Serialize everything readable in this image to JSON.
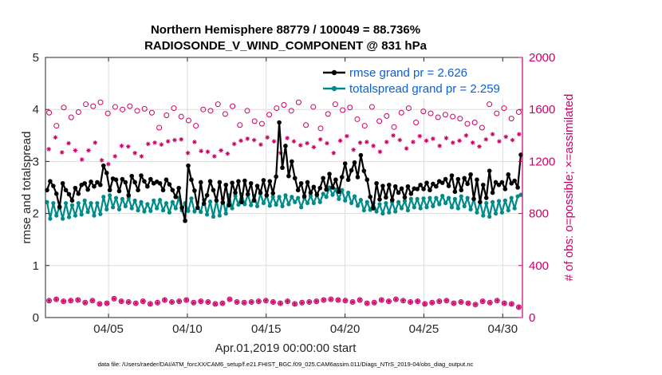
{
  "chart_data": {
    "type": "line",
    "title": "Northern Hemisphere 88779 / 100049 = 88.736%",
    "subtitle": "RADIOSONDE_V_WIND_COMPONENT @ 831 hPa",
    "xlabel": "Apr.01,2019 00:00:00 start",
    "ylabel_left": "rmse and totalspread",
    "ylabel_right": "# of obs: o=possible; ×=assimilated",
    "footnote": "data file: /Users/raeder/DAI/ATM_forcXX/CAM6_setup/f.e21.FHIST_BGC.f09_025.CAM6assim.011/Diags_NTrS_2019-04/obs_diag_output.nc",
    "x_range_days": [
      1.0,
      31.25
    ],
    "ylim_left": [
      0,
      5
    ],
    "ylim_right": [
      0,
      2000
    ],
    "yticks_left": [
      "0",
      "1",
      "2",
      "3",
      "4",
      "5"
    ],
    "yticks_right": [
      "0",
      "400",
      "800",
      "1200",
      "1600",
      "2000"
    ],
    "xticks": [
      {
        "day": 5,
        "label": "04/05"
      },
      {
        "day": 10,
        "label": "04/10"
      },
      {
        "day": 15,
        "label": "04/15"
      },
      {
        "day": 20,
        "label": "04/20"
      },
      {
        "day": 25,
        "label": "04/25"
      },
      {
        "day": 30,
        "label": "04/30"
      }
    ],
    "grid": true,
    "legend_position": "top-right",
    "colors": {
      "rmse": "#000000",
      "spread": "#008b8b",
      "obs": "#cc0066"
    },
    "series": [
      {
        "name": "rmse grand pr = 2.626",
        "axis": "left",
        "values": [
          2.45,
          2.62,
          2.53,
          2.38,
          2.12,
          2.58,
          2.45,
          2.37,
          2.25,
          2.49,
          2.38,
          2.55,
          2.58,
          2.46,
          2.61,
          2.52,
          2.6,
          2.55,
          2.92,
          2.78,
          2.45,
          2.67,
          2.65,
          2.43,
          2.66,
          2.6,
          2.35,
          2.72,
          2.6,
          2.45,
          2.73,
          2.62,
          2.52,
          2.66,
          2.58,
          2.61,
          2.58,
          2.45,
          2.65,
          2.56,
          2.45,
          2.32,
          2.49,
          2.11,
          1.86,
          2.92,
          2.65,
          2.44,
          2.11,
          2.6,
          2.19,
          2.35,
          2.62,
          2.45,
          2.25,
          2.6,
          2.21,
          2.55,
          2.16,
          2.59,
          2.4,
          2.62,
          2.22,
          2.63,
          2.37,
          2.58,
          2.25,
          2.53,
          2.4,
          2.64,
          2.35,
          2.62,
          2.39,
          2.71,
          3.75,
          2.88,
          3.3,
          2.72,
          3.0,
          2.68,
          2.45,
          2.58,
          2.33,
          2.6,
          2.4,
          2.51,
          2.36,
          2.49,
          2.68,
          2.46,
          2.76,
          2.5,
          2.65,
          2.42,
          2.7,
          2.96,
          2.65,
          2.83,
          2.98,
          2.7,
          3.12,
          2.82,
          2.65,
          2.32,
          2.1,
          2.58,
          2.27,
          2.53,
          2.31,
          2.55,
          2.26,
          2.52,
          2.4,
          2.48,
          2.31,
          2.52,
          2.38,
          2.48,
          2.47,
          2.55,
          2.47,
          2.59,
          2.45,
          2.57,
          2.52,
          2.62,
          2.59,
          2.66,
          2.53,
          2.73,
          2.42,
          2.66,
          2.45,
          2.68,
          2.57,
          2.75,
          2.28,
          2.65,
          2.22,
          2.55,
          2.3,
          2.82,
          2.4,
          2.6,
          2.55,
          2.6,
          2.47,
          2.75,
          2.58,
          2.63,
          2.5,
          3.13
        ]
      },
      {
        "name": "totalspread grand pr = 2.259",
        "axis": "left",
        "values": [
          2.22,
          1.9,
          2.2,
          1.96,
          2.14,
          1.9,
          2.2,
          1.93,
          2.16,
          1.96,
          2.2,
          1.98,
          2.25,
          2.03,
          2.2,
          1.96,
          2.2,
          1.99,
          2.32,
          2.08,
          2.35,
          2.12,
          2.3,
          2.08,
          2.28,
          2.14,
          2.3,
          2.1,
          2.25,
          2.06,
          2.22,
          2.04,
          2.18,
          2.05,
          2.25,
          2.1,
          2.26,
          2.06,
          2.2,
          2.02,
          2.22,
          2.1,
          2.3,
          2.06,
          2.2,
          2.05,
          2.29,
          2.04,
          2.12,
          2.03,
          2.26,
          1.98,
          2.23,
          1.94,
          2.25,
          1.96,
          2.28,
          2.0,
          2.35,
          2.1,
          2.34,
          2.17,
          2.37,
          2.18,
          2.36,
          2.16,
          2.34,
          2.14,
          2.38,
          2.2,
          2.35,
          2.15,
          2.32,
          2.17,
          2.32,
          2.14,
          2.35,
          2.18,
          2.32,
          2.22,
          2.3,
          2.12,
          2.3,
          2.2,
          2.34,
          2.2,
          2.36,
          2.22,
          2.38,
          2.32,
          2.5,
          2.36,
          2.46,
          2.28,
          2.45,
          2.25,
          2.4,
          2.2,
          2.33,
          2.15,
          2.26,
          2.06,
          2.22,
          2.07,
          2.2,
          2.04,
          2.18,
          2.0,
          2.2,
          2.02,
          2.22,
          2.04,
          2.22,
          2.1,
          2.24,
          2.06,
          2.28,
          2.12,
          2.28,
          2.1,
          2.29,
          2.12,
          2.3,
          2.14,
          2.3,
          2.18,
          2.34,
          2.2,
          2.3,
          2.12,
          2.28,
          2.1,
          2.33,
          2.14,
          2.3,
          2.08,
          2.28,
          2.02,
          2.22,
          1.96,
          2.2,
          1.94,
          2.22,
          2.0,
          2.24,
          2.02,
          2.25,
          2.06,
          2.3,
          2.1,
          2.33,
          2.36
        ]
      },
      {
        "name": "possible obs (upper)",
        "axis": "right",
        "values": [
          1575,
          1475,
          1615,
          1540,
          1580,
          1640,
          1625,
          1655,
          1570,
          1620,
          1600,
          1625,
          1590,
          1605,
          1575,
          1460,
          1555,
          1610,
          1545,
          1515,
          1475,
          1600,
          1590,
          1640,
          1565,
          1625,
          1480,
          1590,
          1510,
          1490,
          1560,
          1610,
          1635,
          1590,
          1655,
          1480,
          1620,
          1455,
          1565,
          1640,
          1595,
          1615,
          1525,
          1475,
          1620,
          1510,
          1550,
          1465,
          1575,
          1610,
          1500,
          1585,
          1570,
          1540,
          1560,
          1545,
          1530,
          1490,
          1500,
          1460,
          1640,
          1570,
          1610,
          1530,
          1580
        ]
      },
      {
        "name": "assimilated obs (upper)",
        "axis": "right",
        "values": [
          1295,
          1385,
          1270,
          1340,
          1285,
          1215,
          1285,
          1345,
          1210,
          1180,
          1240,
          1320,
          1315,
          1265,
          1240,
          1335,
          1345,
          1330,
          1355,
          1365,
          1370,
          1265,
          1350,
          1280,
          1275,
          1240,
          1285,
          1260,
          1335,
          1360,
          1375,
          1365,
          1330,
          1385,
          1355,
          1265,
          1380,
          1355,
          1325,
          1340,
          1310,
          1370,
          1340,
          1265,
          1360,
          1395,
          1290,
          1345,
          1350,
          1320,
          1275,
          1350,
          1400,
          1365,
          1300,
          1350,
          1395,
          1360,
          1375,
          1320,
          1380,
          1345,
          1360,
          1400,
          1345,
          1315,
          1370,
          1410,
          1355,
          1390,
          1365,
          1410
        ]
      },
      {
        "name": "possible obs (lower)",
        "axis": "right",
        "values": [
          130,
          140,
          125,
          130,
          135,
          115,
          130,
          105,
          110,
          145,
          125,
          120,
          110,
          125,
          105,
          115,
          135,
          120,
          125,
          135,
          115,
          125,
          120,
          105,
          110,
          140,
          120,
          115,
          120,
          125,
          130,
          120,
          110,
          125,
          105,
          115,
          120,
          125,
          135,
          140,
          135,
          130,
          120,
          135,
          110,
          115,
          135,
          125,
          140,
          130,
          120,
          125,
          105,
          115,
          125,
          130,
          110,
          120,
          110,
          100,
          125,
          115,
          130,
          110,
          105,
          80
        ]
      },
      {
        "name": "assimilated obs (lower)",
        "axis": "right",
        "values": [
          130,
          140,
          125,
          130,
          135,
          115,
          130,
          105,
          110,
          145,
          125,
          120,
          110,
          125,
          105,
          115,
          135,
          120,
          125,
          135,
          115,
          125,
          120,
          105,
          110,
          140,
          120,
          115,
          120,
          125,
          130,
          120,
          110,
          125,
          105,
          115,
          120,
          125,
          135,
          140,
          135,
          130,
          120,
          135,
          110,
          115,
          135,
          125,
          140,
          130,
          120,
          125,
          105,
          115,
          125,
          130,
          110,
          120,
          110,
          100,
          125,
          115,
          130,
          110,
          105,
          80
        ]
      }
    ]
  }
}
